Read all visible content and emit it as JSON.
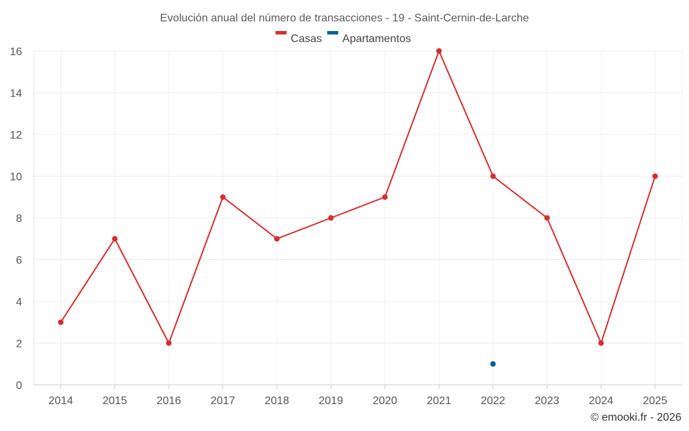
{
  "chart_data": {
    "type": "line",
    "title": "Evolución anual del número de transacciones - 19 - Saint-Cernin-de-Larche",
    "categories": [
      "2014",
      "2015",
      "2016",
      "2017",
      "2018",
      "2019",
      "2020",
      "2021",
      "2022",
      "2023",
      "2024",
      "2025"
    ],
    "series": [
      {
        "name": "Casas",
        "color": "#d32f2f",
        "values": [
          3,
          7,
          2,
          9,
          7,
          8,
          9,
          16,
          10,
          8,
          2,
          10
        ]
      },
      {
        "name": "Apartamentos",
        "color": "#0d5f97",
        "values": [
          null,
          null,
          null,
          null,
          null,
          null,
          null,
          null,
          1,
          null,
          null,
          null
        ]
      }
    ],
    "ylim": [
      0,
      16
    ],
    "yticks": [
      0,
      2,
      4,
      6,
      8,
      10,
      12,
      14,
      16
    ],
    "grid": true,
    "legend": "top-center",
    "xlabel": "",
    "ylabel": ""
  },
  "credit": "© emooki.fr - 2026"
}
